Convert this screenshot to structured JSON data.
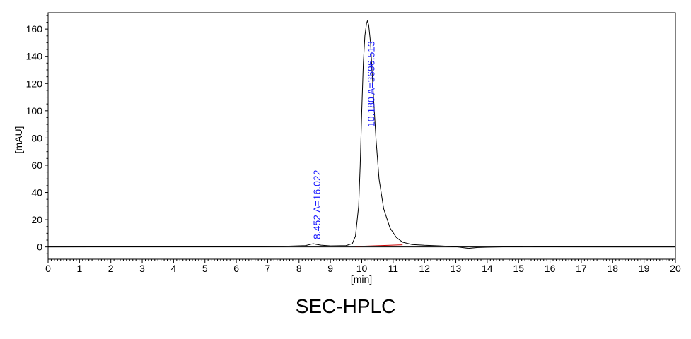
{
  "chart_data": {
    "type": "line",
    "title": "",
    "caption": "SEC-HPLC",
    "xlabel": "[min]",
    "ylabel": "[mAU]",
    "xlim": [
      0,
      20
    ],
    "ylim": [
      -9,
      172
    ],
    "xticks": [
      0,
      1,
      2,
      3,
      4,
      5,
      6,
      7,
      8,
      9,
      10,
      11,
      12,
      13,
      14,
      15,
      16,
      17,
      18,
      19,
      20
    ],
    "yticks": [
      0,
      20,
      40,
      60,
      80,
      100,
      120,
      140,
      160
    ],
    "grid": false,
    "colors": {
      "trace": "#000000",
      "baseline_fit": "#cc0000",
      "peak_labels": "#1a1aff",
      "zero_line": "#000000"
    },
    "series": [
      {
        "x": [
          0,
          6.5,
          7.5,
          8.2,
          8.35,
          8.45,
          8.55,
          8.7,
          9.0,
          9.5,
          9.7,
          9.8,
          9.9,
          9.95,
          10.0,
          10.05,
          10.1,
          10.15,
          10.18,
          10.22,
          10.28,
          10.35,
          10.45,
          10.55,
          10.7,
          10.9,
          11.1,
          11.3,
          11.6,
          12.0,
          12.5,
          13.0,
          13.4,
          13.7,
          14.0,
          14.5,
          15.0,
          15.2,
          16.0,
          20.0
        ],
        "y": [
          0,
          0.3,
          0.5,
          1.0,
          1.8,
          2.4,
          1.9,
          1.3,
          0.8,
          1.0,
          2.5,
          8,
          30,
          60,
          100,
          135,
          155,
          164,
          166,
          163,
          150,
          120,
          80,
          50,
          28,
          14,
          7,
          3.5,
          1.8,
          1.2,
          0.8,
          0.2,
          -1.0,
          -0.4,
          -0.2,
          0.1,
          0.2,
          0.5,
          0.1,
          0
        ]
      }
    ],
    "baseline_fit": {
      "x": [
        9.8,
        11.3
      ],
      "y": [
        0.4,
        1.6
      ]
    },
    "peaks": [
      {
        "rt": 8.452,
        "height": 2.4,
        "label": "8.452 A=16.022"
      },
      {
        "rt": 10.18,
        "height": 166,
        "label": "10.180 A=3696.513"
      }
    ]
  }
}
